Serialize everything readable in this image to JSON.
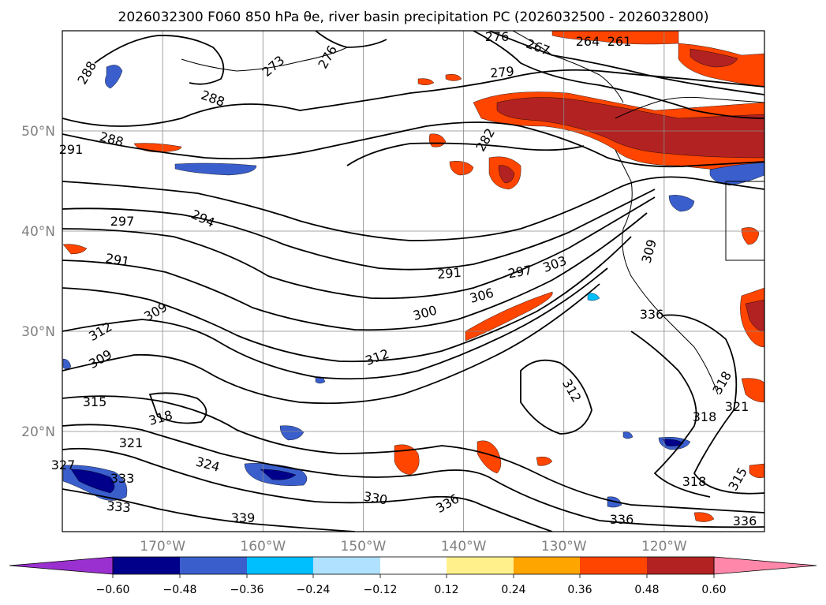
{
  "chart_data": {
    "type": "map",
    "title": "2026032300 F060 850 hPa θe, river basin precipitation PC (2026032500 - 2026032800)",
    "lat_ticks": [
      "50°N",
      "40°N",
      "30°N",
      "20°N"
    ],
    "lat_values": [
      50,
      40,
      30,
      20
    ],
    "lon_ticks": [
      "170°W",
      "160°W",
      "150°W",
      "140°W",
      "130°W",
      "120°W"
    ],
    "lon_values": [
      -170,
      -160,
      -150,
      -140,
      -130,
      -120
    ],
    "lon_range": [
      -180,
      -110
    ],
    "lat_range": [
      10,
      60
    ],
    "grid": true,
    "contour_variable": "850 hPa θe (K)",
    "contour_labels": [
      "288",
      "288",
      "288",
      "273",
      "276",
      "276",
      "267",
      "264",
      "261",
      "279",
      "282",
      "291",
      "294",
      "297",
      "291",
      "291",
      "297",
      "303",
      "309",
      "300",
      "306",
      "312",
      "309",
      "312",
      "315",
      "318",
      "321",
      "324",
      "327",
      "330",
      "333",
      "336",
      "333",
      "339",
      "336",
      "336",
      "312",
      "318",
      "321",
      "318",
      "315",
      "309",
      "318",
      "336"
    ],
    "colorbar": {
      "ticks": [
        "−0.60",
        "−0.48",
        "−0.36",
        "−0.24",
        "−0.12",
        "0.12",
        "0.24",
        "0.36",
        "0.48",
        "0.60"
      ],
      "colors": [
        "#9b30d0",
        "#00008b",
        "#3a5fcd",
        "#00bfff",
        "#b0e2ff",
        "#ffffff",
        "#fff08c",
        "#ffa500",
        "#ff4500",
        "#b22222",
        "#ff88aa"
      ],
      "extend": "both"
    },
    "colors": {
      "contour": "#000000",
      "grid": "#888888",
      "positive_strong": "#b22222",
      "positive_mid": "#ff4500",
      "positive_low": "#ffa500",
      "positive_min": "#fff08c",
      "negative_strong": "#00008b",
      "negative_mid": "#3a5fcd",
      "negative_low": "#00bfff",
      "negative_min": "#b0e2ff"
    }
  }
}
